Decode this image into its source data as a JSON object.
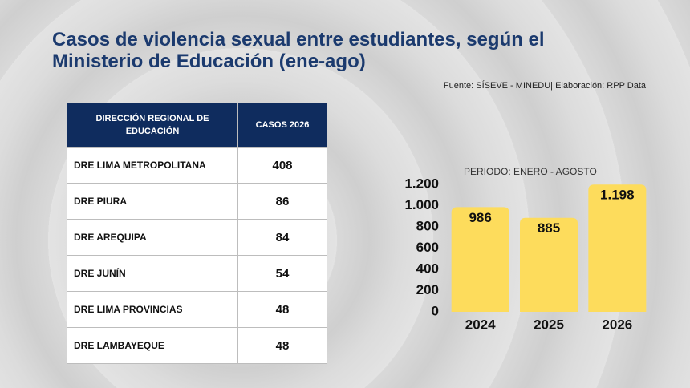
{
  "title": [
    "Casos de violencia sexual entre estudiantes, según el",
    "Ministerio de Educación (ene-ago)"
  ],
  "source": "Fuente: SÍSEVE - MINEDU| Elaboración: RPP Data",
  "table": {
    "headers": [
      "DIRECCIÓN REGIONAL DE EDUCACIÓN",
      "CASOS 2026"
    ],
    "rows": [
      [
        "DRE LIMA METROPOLITANA",
        408
      ],
      [
        "DRE PIURA",
        86
      ],
      [
        "DRE AREQUIPA",
        84
      ],
      [
        "DRE JUNÍN",
        54
      ],
      [
        "DRE LIMA PROVINCIAS",
        48
      ],
      [
        "DRE LAMBAYEQUE",
        48
      ]
    ]
  },
  "chart_data": {
    "type": "bar",
    "subtitle": "PERIODO: ENERO - AGOSTO",
    "categories": [
      "2024",
      "2025",
      "2026"
    ],
    "values": [
      986,
      885,
      1198
    ],
    "value_labels": [
      "986",
      "885",
      "1.198"
    ],
    "color": "#fddc5c",
    "ylim": [
      0,
      1200
    ],
    "yticks": [
      0,
      200,
      400,
      600,
      800,
      {
        "value": 1000,
        "label": "1.000"
      },
      {
        "value": 1200,
        "label": "1.200"
      }
    ],
    "grid": false
  }
}
